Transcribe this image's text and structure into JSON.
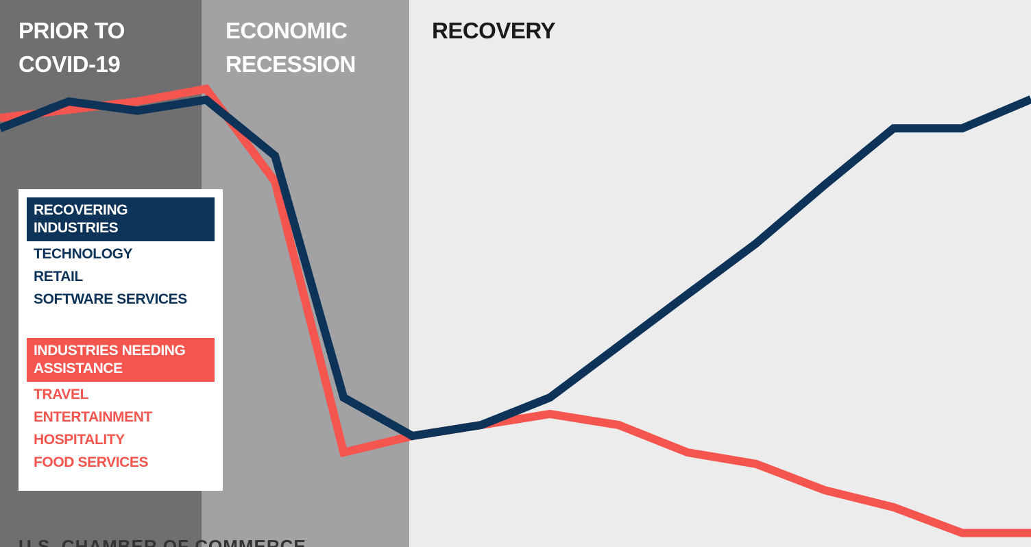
{
  "chart_data": {
    "type": "line",
    "regions": [
      "PRIOR TO COVID-19",
      "ECONOMIC RECESSION",
      "RECOVERY"
    ],
    "categories": [
      null,
      null,
      null,
      null,
      null,
      null,
      null,
      null,
      null,
      null,
      null,
      null,
      null,
      null,
      null,
      null
    ],
    "series": [
      {
        "name": "INDUSTRIES NEEDING ASSISTANCE",
        "color": "#f4564f",
        "industries": [
          "TRAVEL",
          "ENTERTAINMENT",
          "HOSPITALITY",
          "FOOD SERVICES"
        ],
        "values": [
          78.5,
          80,
          81.5,
          83.8,
          66.9,
          17.5,
          20.5,
          22.5,
          24.5,
          22.5,
          17.5,
          15.4,
          10.6,
          7.5,
          2.8,
          2.8
        ]
      },
      {
        "name": "RECOVERING INDUSTRIES",
        "color": "#0d3358",
        "industries": [
          "TECHNOLOGY",
          "RETAIL",
          "SOFTWARE SERVICES"
        ],
        "values": [
          76.6,
          81.5,
          79.8,
          81.8,
          71.6,
          27.5,
          20.5,
          22.5,
          27.5,
          36.9,
          46.3,
          55.6,
          66.3,
          76.6,
          76.6,
          81.9
        ]
      }
    ],
    "ylim": [
      0,
      100
    ],
    "source": "U.S. CHAMBER OF COMMERCE"
  }
}
